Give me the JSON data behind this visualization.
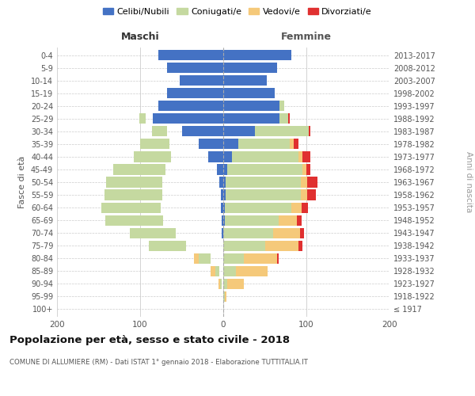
{
  "age_groups": [
    "100+",
    "95-99",
    "90-94",
    "85-89",
    "80-84",
    "75-79",
    "70-74",
    "65-69",
    "60-64",
    "55-59",
    "50-54",
    "45-49",
    "40-44",
    "35-39",
    "30-34",
    "25-29",
    "20-24",
    "15-19",
    "10-14",
    "5-9",
    "0-4"
  ],
  "birth_years": [
    "≤ 1917",
    "1918-1922",
    "1923-1927",
    "1928-1932",
    "1933-1937",
    "1938-1942",
    "1943-1947",
    "1948-1952",
    "1953-1957",
    "1958-1962",
    "1963-1967",
    "1968-1972",
    "1973-1977",
    "1978-1982",
    "1983-1987",
    "1988-1992",
    "1993-1997",
    "1998-2002",
    "2003-2007",
    "2008-2012",
    "2013-2017"
  ],
  "males": {
    "celibi": [
      0,
      0,
      0,
      0,
      0,
      0,
      2,
      2,
      3,
      3,
      5,
      8,
      18,
      30,
      50,
      85,
      78,
      68,
      52,
      68,
      78
    ],
    "coniugati": [
      0,
      0,
      2,
      5,
      15,
      45,
      55,
      70,
      72,
      70,
      68,
      62,
      45,
      35,
      18,
      8,
      0,
      0,
      0,
      0,
      0
    ],
    "vedovi": [
      0,
      0,
      2,
      5,
      10,
      10,
      8,
      5,
      3,
      2,
      2,
      0,
      2,
      2,
      2,
      0,
      0,
      0,
      0,
      0,
      0
    ],
    "divorziati": [
      0,
      0,
      0,
      0,
      5,
      0,
      5,
      5,
      8,
      8,
      8,
      3,
      8,
      5,
      2,
      0,
      0,
      0,
      0,
      0,
      0
    ]
  },
  "females": {
    "nubili": [
      0,
      0,
      0,
      0,
      0,
      0,
      0,
      2,
      2,
      3,
      3,
      5,
      10,
      18,
      38,
      68,
      68,
      62,
      52,
      65,
      82
    ],
    "coniugate": [
      0,
      2,
      5,
      15,
      25,
      50,
      60,
      65,
      80,
      90,
      90,
      90,
      80,
      62,
      65,
      10,
      5,
      0,
      0,
      0,
      0
    ],
    "vedove": [
      0,
      2,
      20,
      38,
      40,
      40,
      32,
      22,
      12,
      8,
      8,
      5,
      5,
      5,
      0,
      0,
      0,
      0,
      0,
      0,
      0
    ],
    "divorziate": [
      0,
      0,
      0,
      0,
      2,
      5,
      5,
      5,
      8,
      10,
      12,
      5,
      10,
      5,
      2,
      2,
      0,
      0,
      0,
      0,
      0
    ]
  },
  "colors": {
    "celibi": "#4472c4",
    "coniugati": "#c5d9a0",
    "vedovi": "#f5c97a",
    "divorziati": "#e03030"
  },
  "xlim": [
    -200,
    200
  ],
  "xticks": [
    -200,
    -100,
    0,
    100,
    200
  ],
  "xticklabels": [
    "200",
    "100",
    "0",
    "100",
    "200"
  ],
  "title_main": "Popolazione per età, sesso e stato civile - 2018",
  "title_sub": "COMUNE DI ALLUMIERE (RM) - Dati ISTAT 1° gennaio 2018 - Elaborazione TUTTITALIA.IT",
  "ylabel_left": "Fasce di età",
  "ylabel_right": "Anni di nascita",
  "legend_labels": [
    "Celibi/Nubili",
    "Coniugati/e",
    "Vedovi/e",
    "Divorziati/e"
  ],
  "maschi_label": "Maschi",
  "femmine_label": "Femmine",
  "background_color": "#ffffff",
  "grid_color": "#cccccc"
}
